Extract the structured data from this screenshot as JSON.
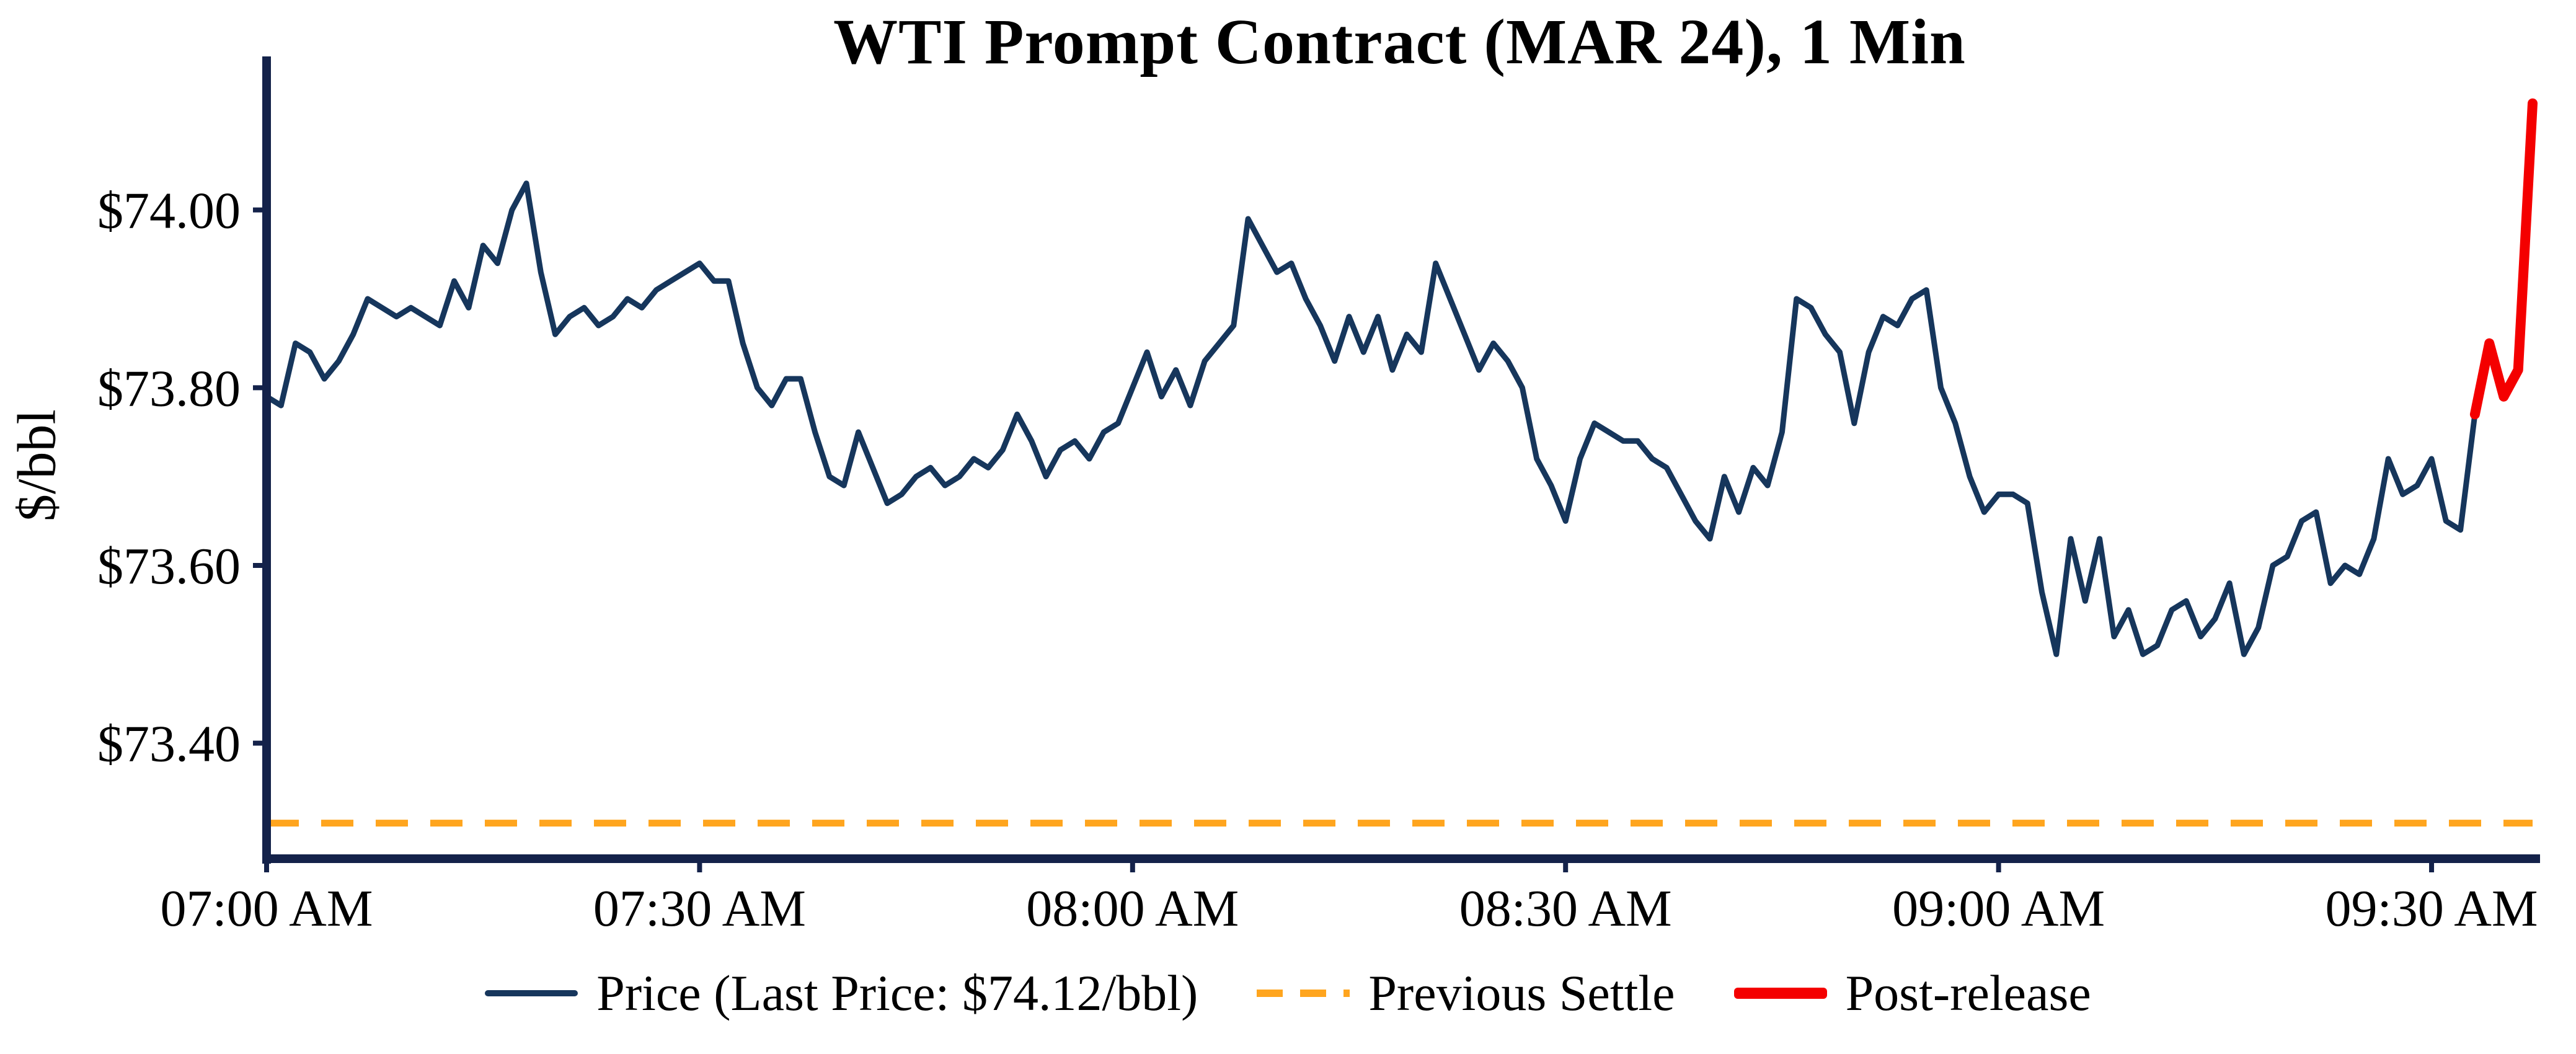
{
  "chart_data": {
    "type": "line",
    "title": "WTI Prompt Contract (MAR 24), 1 Min",
    "xlabel": "",
    "ylabel": "$/bbl",
    "interval": "1 Min",
    "contract": "WTI Prompt Contract (MAR 24)",
    "last_price": 74.12,
    "last_price_text": "$74.12/bbl",
    "xlim_minutes": [
      0,
      157
    ],
    "ylim": [
      73.27,
      74.17
    ],
    "x_origin_time": "07:00 AM",
    "grid": false,
    "xticks": [
      {
        "minute": 0,
        "label": "07:00 AM"
      },
      {
        "minute": 30,
        "label": "07:30 AM"
      },
      {
        "minute": 60,
        "label": "08:00 AM"
      },
      {
        "minute": 90,
        "label": "08:30 AM"
      },
      {
        "minute": 120,
        "label": "09:00 AM"
      },
      {
        "minute": 150,
        "label": "09:30 AM"
      }
    ],
    "yticks": [
      {
        "value": 73.4,
        "label": "$73.40"
      },
      {
        "value": 73.6,
        "label": "$73.60"
      },
      {
        "value": 73.8,
        "label": "$73.80"
      },
      {
        "value": 74.0,
        "label": "$74.00"
      }
    ],
    "previous_settle": {
      "label": "Previous Settle",
      "value": 73.31,
      "color": "#FFA51E",
      "style": "dashed"
    },
    "series": [
      {
        "name": "Price",
        "color": "#16365C",
        "style": "solid",
        "stroke_width": 9,
        "start_minute": 0,
        "step_minutes": 1,
        "values": [
          73.79,
          73.78,
          73.85,
          73.84,
          73.81,
          73.83,
          73.86,
          73.9,
          73.89,
          73.88,
          73.89,
          73.88,
          73.87,
          73.92,
          73.89,
          73.96,
          73.94,
          74.0,
          74.03,
          73.93,
          73.86,
          73.88,
          73.89,
          73.87,
          73.88,
          73.9,
          73.89,
          73.91,
          73.92,
          73.93,
          73.94,
          73.92,
          73.92,
          73.85,
          73.8,
          73.78,
          73.81,
          73.81,
          73.75,
          73.7,
          73.69,
          73.75,
          73.71,
          73.67,
          73.68,
          73.7,
          73.71,
          73.69,
          73.7,
          73.72,
          73.71,
          73.73,
          73.77,
          73.74,
          73.7,
          73.73,
          73.74,
          73.72,
          73.75,
          73.76,
          73.8,
          73.84,
          73.79,
          73.82,
          73.78,
          73.83,
          73.85,
          73.87,
          73.99,
          73.96,
          73.93,
          73.94,
          73.9,
          73.87,
          73.83,
          73.88,
          73.84,
          73.88,
          73.82,
          73.86,
          73.84,
          73.94,
          73.9,
          73.86,
          73.82,
          73.85,
          73.83,
          73.8,
          73.72,
          73.69,
          73.65,
          73.72,
          73.76,
          73.75,
          73.74,
          73.74,
          73.72,
          73.71,
          73.68,
          73.65,
          73.63,
          73.7,
          73.66,
          73.71,
          73.69,
          73.75,
          73.9,
          73.89,
          73.86,
          73.84,
          73.76,
          73.84,
          73.88,
          73.87,
          73.9,
          73.91,
          73.8,
          73.76,
          73.7,
          73.66,
          73.68,
          73.68,
          73.67,
          73.57,
          73.5,
          73.63,
          73.56,
          73.63,
          73.52,
          73.55,
          73.5,
          73.51,
          73.55,
          73.56,
          73.52,
          73.54,
          73.58,
          73.5,
          73.53,
          73.6,
          73.61,
          73.65,
          73.66,
          73.58,
          73.6,
          73.59,
          73.63,
          73.72,
          73.68,
          73.69,
          73.72,
          73.65,
          73.64,
          73.77
        ]
      },
      {
        "name": "Post-release",
        "color": "#F40000",
        "style": "solid",
        "stroke_width": 16,
        "start_minute": 153,
        "step_minutes": 1,
        "values": [
          73.77,
          73.85,
          73.79,
          73.82,
          74.12
        ]
      }
    ],
    "legend": {
      "position": "bottom center",
      "items": [
        {
          "label": "Price (Last Price: $74.12/bbl)",
          "color": "#16365C",
          "style": "solid-line"
        },
        {
          "label": "Previous Settle",
          "color": "#FFA51E",
          "style": "dashed-line"
        },
        {
          "label": "Post-release",
          "color": "#F40000",
          "style": "thick-line"
        }
      ]
    },
    "colors": {
      "spine": "#14224A",
      "text": "#000000",
      "price_line": "#16365C",
      "settle_line": "#FFA51E",
      "post_release_line": "#F40000"
    }
  }
}
